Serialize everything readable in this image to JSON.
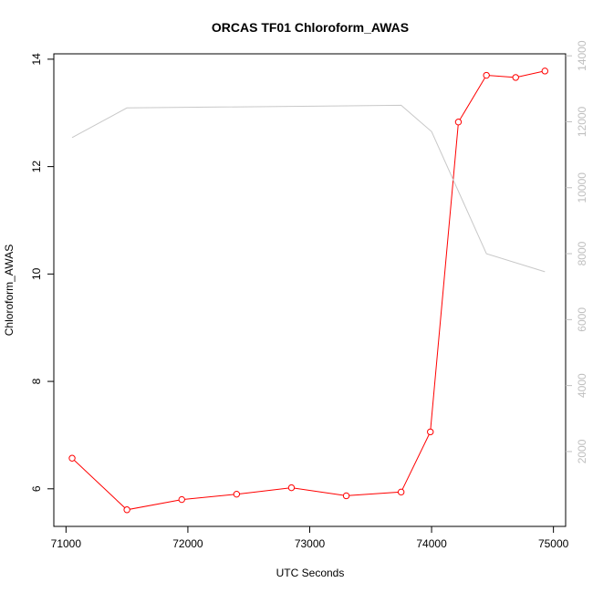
{
  "chart_data": {
    "type": "line",
    "title": "ORCAS TF01 Chloroform_AWAS",
    "xlabel": "UTC Seconds",
    "ylabel": "Chloroform_AWAS",
    "y2label": "",
    "xlim": [
      70900,
      75100
    ],
    "ylim": [
      5.3,
      14.1
    ],
    "y2lim": [
      -270,
      14060
    ],
    "x_ticks": [
      71000,
      72000,
      73000,
      74000,
      75000
    ],
    "y_ticks": [
      6,
      8,
      10,
      12,
      14
    ],
    "y2_ticks": [
      2000,
      4000,
      6000,
      8000,
      10000,
      12000,
      14000
    ],
    "grid": false,
    "series": [
      {
        "axis": "left",
        "color": "#ff0000",
        "markers": "open-circle",
        "x": [
          71050,
          71500,
          71950,
          72400,
          72850,
          73300,
          73750,
          73990,
          74220,
          74450,
          74690,
          74930
        ],
        "values": [
          6.57,
          5.61,
          5.8,
          5.9,
          6.02,
          5.87,
          5.94,
          7.06,
          12.83,
          13.7,
          13.66,
          13.78
        ]
      },
      {
        "axis": "right",
        "color": "#c8c8c8",
        "markers": "none",
        "x": [
          71050,
          71500,
          73750,
          74000,
          74450,
          74930
        ],
        "values": [
          11520,
          12420,
          12500,
          11700,
          8000,
          7450
        ]
      }
    ]
  }
}
